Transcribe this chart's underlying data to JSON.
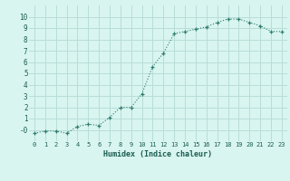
{
  "x": [
    0,
    1,
    2,
    3,
    4,
    5,
    6,
    7,
    8,
    9,
    10,
    11,
    12,
    13,
    14,
    15,
    16,
    17,
    18,
    19,
    20,
    21,
    22,
    23
  ],
  "y": [
    -0.3,
    -0.1,
    -0.1,
    -0.3,
    0.3,
    0.5,
    0.4,
    1.1,
    2.0,
    2.0,
    3.2,
    5.6,
    6.8,
    8.5,
    8.7,
    8.9,
    9.1,
    9.5,
    9.8,
    9.8,
    9.5,
    9.2,
    8.7,
    8.7
  ],
  "xlabel": "Humidex (Indice chaleur)",
  "ylabel": "",
  "xlim": [
    -0.5,
    23.5
  ],
  "ylim": [
    -1.0,
    11.0
  ],
  "yticks": [
    0,
    1,
    2,
    3,
    4,
    5,
    6,
    7,
    8,
    9,
    10
  ],
  "xticks": [
    0,
    1,
    2,
    3,
    4,
    5,
    6,
    7,
    8,
    9,
    10,
    11,
    12,
    13,
    14,
    15,
    16,
    17,
    18,
    19,
    20,
    21,
    22,
    23
  ],
  "line_color": "#2e7d6e",
  "marker": "+",
  "bg_color": "#d9f5f0",
  "grid_color": "#b8ddd8",
  "tick_label_color": "#1a5c50",
  "xlabel_color": "#1a5c50",
  "font_family": "monospace"
}
